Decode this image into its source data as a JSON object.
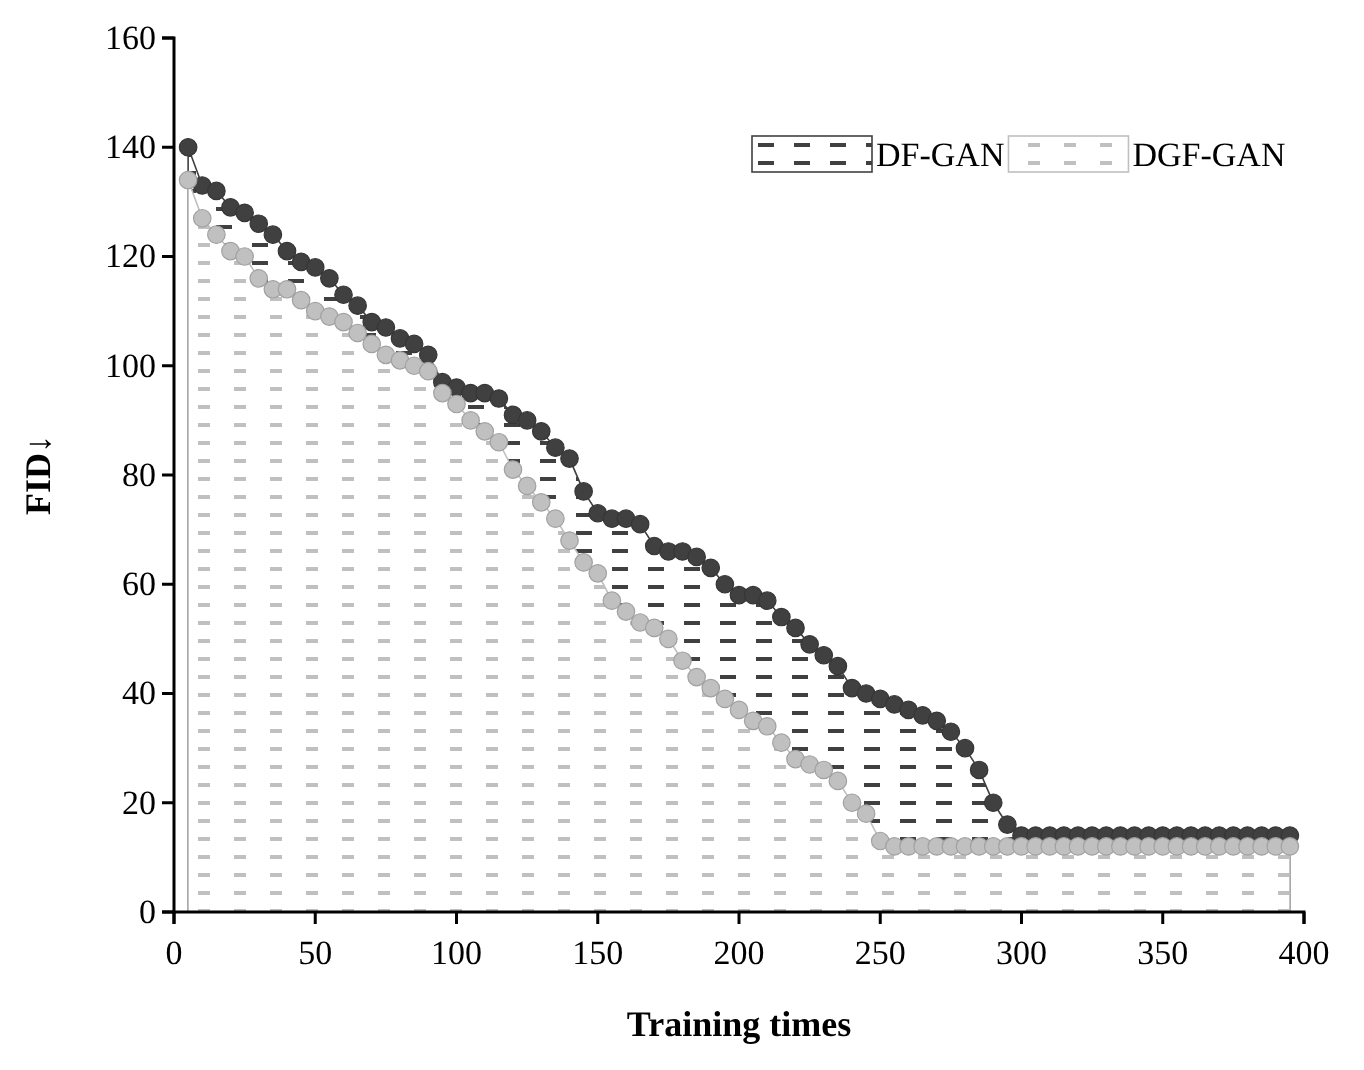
{
  "chart_data": {
    "type": "area",
    "xlabel": "Training times",
    "ylabel": "FID↓",
    "x": [
      5,
      10,
      15,
      20,
      25,
      30,
      35,
      40,
      45,
      50,
      55,
      60,
      65,
      70,
      75,
      80,
      85,
      90,
      95,
      100,
      105,
      110,
      115,
      120,
      125,
      130,
      135,
      140,
      145,
      150,
      155,
      160,
      165,
      170,
      175,
      180,
      185,
      190,
      195,
      200,
      205,
      210,
      215,
      220,
      225,
      230,
      235,
      240,
      245,
      250,
      255,
      260,
      265,
      270,
      275,
      280,
      285,
      290,
      295,
      300,
      305,
      310,
      315,
      320,
      325,
      330,
      335,
      340,
      345,
      350,
      355,
      360,
      365,
      370,
      375,
      380,
      385,
      390,
      395
    ],
    "series": [
      {
        "name": "DF-GAN",
        "color": "#404040",
        "values": [
          140,
          133,
          132,
          129,
          128,
          126,
          124,
          121,
          119,
          118,
          116,
          113,
          111,
          108,
          107,
          105,
          104,
          102,
          97,
          96,
          95,
          95,
          94,
          91,
          90,
          88,
          85,
          83,
          77,
          73,
          72,
          72,
          71,
          67,
          66,
          66,
          65,
          63,
          60,
          58,
          58,
          57,
          54,
          52,
          49,
          47,
          45,
          41,
          40,
          39,
          38,
          37,
          36,
          35,
          33,
          30,
          26,
          20,
          16,
          14,
          14,
          14,
          14,
          14,
          14,
          14,
          14,
          14,
          14,
          14,
          14,
          14,
          14,
          14,
          14,
          14,
          14,
          14,
          14
        ]
      },
      {
        "name": "DGF-GAN",
        "color": "#c0c0c0",
        "values": [
          134,
          127,
          124,
          121,
          120,
          116,
          114,
          114,
          112,
          110,
          109,
          108,
          106,
          104,
          102,
          101,
          100,
          99,
          95,
          93,
          90,
          88,
          86,
          81,
          78,
          75,
          72,
          68,
          64,
          62,
          57,
          55,
          53,
          52,
          50,
          46,
          43,
          41,
          39,
          37,
          35,
          34,
          31,
          28,
          27,
          26,
          24,
          20,
          18,
          13,
          12,
          12,
          12,
          12,
          12,
          12,
          12,
          12,
          12,
          12,
          12,
          12,
          12,
          12,
          12,
          12,
          12,
          12,
          12,
          12,
          12,
          12,
          12,
          12,
          12,
          12,
          12,
          12,
          12
        ]
      }
    ],
    "xlim": [
      0,
      400
    ],
    "xticks": [
      0,
      50,
      100,
      150,
      200,
      250,
      300,
      350,
      400
    ],
    "ylim": [
      0,
      160
    ],
    "yticks": [
      0,
      20,
      40,
      60,
      80,
      100,
      120,
      140,
      160
    ],
    "marker": "circle",
    "legend": "top right",
    "grid": false
  }
}
